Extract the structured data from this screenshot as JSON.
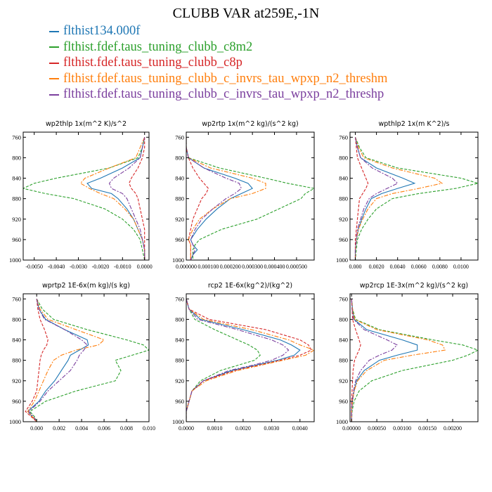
{
  "title": "CLUBB VAR at259E,-1N",
  "legend": [
    {
      "label": "flthist134.000f",
      "color": "#1f77b4"
    },
    {
      "label": "flthist.fdef.taus_tuning_clubb_c8m2",
      "color": "#2ca02c"
    },
    {
      "label": "flthist.fdef.taus_tuning_clubb_c8p",
      "color": "#d62728"
    },
    {
      "label": "flthist.fdef.taus_tuning_clubb_c_invrs_tau_wpxp_n2_threshm",
      "color": "#ff7f0e"
    },
    {
      "label": "flthist.fdef.taus_tuning_clubb_c_invrs_tau_wpxp_n2_threshp",
      "color": "#7b3f9e"
    }
  ],
  "chart_data": [
    {
      "type": "line",
      "title": "wp2thlp   1x(m^2 K)/s^2",
      "xlim": [
        -0.0055,
        0.0002
      ],
      "ylim": [
        1000,
        750
      ],
      "yticks": [
        760,
        800,
        840,
        880,
        920,
        960,
        1000
      ],
      "xticks": [
        -0.005,
        -0.004,
        -0.003,
        -0.002,
        -0.001,
        0.0
      ],
      "xtick_labels": [
        "-0.0050",
        "-0.0040",
        "-0.0030",
        "-0.0020",
        "-0.0010",
        "0.0000"
      ],
      "y": [
        760,
        780,
        800,
        820,
        840,
        850,
        860,
        870,
        880,
        900,
        920,
        940,
        960,
        980,
        1000
      ],
      "series": [
        {
          "values": [
            0.0,
            -0.0001,
            -0.0002,
            -0.001,
            -0.002,
            -0.0026,
            -0.0024,
            -0.0015,
            -0.0012,
            -0.0008,
            -0.0005,
            -0.0003,
            -0.0001,
            0.0,
            0.0
          ]
        },
        {
          "values": [
            0.0,
            -0.0001,
            -0.0003,
            -0.0016,
            -0.004,
            -0.005,
            -0.0055,
            -0.0045,
            -0.0032,
            -0.0018,
            -0.001,
            -0.0005,
            -0.0002,
            -0.0001,
            0.0
          ]
        },
        {
          "values": [
            0.0,
            0.0,
            -0.0001,
            -0.0003,
            -0.0006,
            -0.0007,
            -0.0006,
            -0.0004,
            -0.0003,
            -0.0002,
            -0.0001,
            0.0,
            0.0,
            0.0,
            0.0
          ]
        },
        {
          "values": [
            0.0,
            -0.0002,
            -0.0004,
            -0.0016,
            -0.0027,
            -0.0029,
            -0.0025,
            -0.002,
            -0.0014,
            -0.0009,
            -0.0005,
            -0.0003,
            -0.0001,
            0.0,
            0.0
          ]
        },
        {
          "values": [
            0.0,
            -0.0001,
            -0.0002,
            -0.0007,
            -0.0014,
            -0.0016,
            -0.0015,
            -0.001,
            -0.0008,
            -0.0006,
            -0.0004,
            -0.0002,
            -0.0001,
            0.0,
            0.0
          ]
        }
      ]
    },
    {
      "type": "line",
      "title": "wp2rtp   1x(m^2 kg)/(s^2 kg)",
      "xlim": [
        0.0,
        0.00058
      ],
      "ylim": [
        1000,
        750
      ],
      "yticks": [
        760,
        800,
        840,
        880,
        920,
        960,
        1000
      ],
      "xticks": [
        0.0,
        0.0001,
        0.0002,
        0.0003,
        0.0004,
        0.0005
      ],
      "xtick_labels": [
        "0.000000",
        "0.000100",
        "0.000200",
        "0.000300",
        "0.000400",
        "0.000500"
      ],
      "y": [
        760,
        780,
        800,
        820,
        840,
        850,
        860,
        870,
        880,
        900,
        920,
        940,
        960,
        970,
        980,
        990,
        1000
      ],
      "series": [
        {
          "values": [
            0.0,
            0.0,
            1e-05,
            8e-05,
            0.00022,
            0.00028,
            0.0003,
            0.00025,
            0.0002,
            0.00014,
            9e-05,
            5e-05,
            2e-05,
            3e-05,
            5e-05,
            3e-05,
            2e-05
          ]
        },
        {
          "values": [
            0.0,
            0.0,
            1e-05,
            0.00015,
            0.00036,
            0.00046,
            0.00058,
            0.00054,
            0.00052,
            0.00042,
            0.00032,
            0.00016,
            6e-05,
            4e-05,
            3e-05,
            3e-05,
            3e-05
          ]
        },
        {
          "values": [
            0.0,
            0.0,
            1e-05,
            3e-05,
            6e-05,
            8e-05,
            0.0001,
            9e-05,
            7e-05,
            5e-05,
            3e-05,
            2e-05,
            1e-05,
            2e-05,
            2e-05,
            2e-05,
            2e-05
          ]
        },
        {
          "values": [
            0.0,
            0.0,
            1e-05,
            0.00011,
            0.0003,
            0.00036,
            0.00036,
            0.0003,
            0.0002,
            0.00012,
            6e-05,
            3e-05,
            1e-05,
            2e-05,
            2e-05,
            2e-05,
            2e-05
          ]
        },
        {
          "values": [
            0.0,
            0.0,
            1e-05,
            8e-05,
            0.00018,
            0.00024,
            0.00025,
            0.00022,
            0.00018,
            0.00012,
            7e-05,
            4e-05,
            2e-05,
            3e-05,
            4e-05,
            3e-05,
            2e-05
          ]
        }
      ]
    },
    {
      "type": "line",
      "title": "wpthlp2   1x(m K^2)/s",
      "xlim": [
        -0.0005,
        0.0116
      ],
      "ylim": [
        1000,
        750
      ],
      "yticks": [
        760,
        800,
        840,
        880,
        920,
        960,
        1000
      ],
      "xticks": [
        0.0,
        0.002,
        0.004,
        0.006,
        0.008,
        0.01
      ],
      "xtick_labels": [
        "0.000",
        "0.0020",
        "0.0040",
        "0.0060",
        "0.0080",
        "0.0100"
      ],
      "y": [
        760,
        780,
        800,
        820,
        840,
        850,
        860,
        870,
        880,
        900,
        920,
        940,
        960,
        980,
        1000
      ],
      "series": [
        {
          "values": [
            0.0,
            0.0002,
            0.0005,
            0.002,
            0.0045,
            0.0056,
            0.004,
            0.0025,
            0.0015,
            0.001,
            0.0006,
            0.0003,
            0.0001,
            0.0,
            0.0
          ]
        },
        {
          "values": [
            0.0,
            0.0004,
            0.001,
            0.004,
            0.01,
            0.0116,
            0.0095,
            0.006,
            0.0035,
            0.002,
            0.0012,
            0.0006,
            0.0002,
            0.0001,
            0.0
          ]
        },
        {
          "values": [
            0.0,
            0.0001,
            0.0002,
            0.0006,
            0.001,
            0.0012,
            0.001,
            0.0007,
            0.0004,
            0.0003,
            0.0002,
            0.0001,
            0.0,
            0.0,
            0.0
          ]
        },
        {
          "values": [
            0.0,
            0.0003,
            0.0008,
            0.0035,
            0.0075,
            0.0082,
            0.006,
            0.0035,
            0.002,
            0.0012,
            0.0007,
            0.0003,
            0.0001,
            0.0,
            0.0
          ]
        },
        {
          "values": [
            0.0,
            0.0002,
            0.0005,
            0.0016,
            0.0035,
            0.004,
            0.003,
            0.002,
            0.0013,
            0.0008,
            0.0005,
            0.0002,
            0.0001,
            0.0,
            0.0
          ]
        }
      ]
    },
    {
      "type": "line",
      "title": "wprtp2   1E-6x(m kg)/(s kg)",
      "xlim": [
        -0.0012,
        0.01
      ],
      "ylim": [
        1000,
        750
      ],
      "yticks": [
        760,
        800,
        840,
        880,
        920,
        960,
        1000
      ],
      "xticks": [
        0.0,
        0.002,
        0.004,
        0.006,
        0.008,
        0.01
      ],
      "xtick_labels": [
        "0.000",
        "0.002",
        "0.004",
        "0.006",
        "0.008",
        "0.010"
      ],
      "y": [
        760,
        780,
        800,
        820,
        840,
        850,
        860,
        870,
        880,
        900,
        920,
        940,
        960,
        980,
        990,
        1000
      ],
      "series": [
        {
          "values": [
            0.0,
            0.0002,
            0.0008,
            0.0025,
            0.0045,
            0.0046,
            0.0038,
            0.003,
            0.0028,
            0.0022,
            0.0016,
            0.0008,
            0.0002,
            -0.0008,
            -0.0004,
            0.0
          ]
        },
        {
          "values": [
            0.0,
            0.0005,
            0.0015,
            0.0045,
            0.008,
            0.0095,
            0.01,
            0.0085,
            0.007,
            0.0075,
            0.007,
            0.0035,
            0.0008,
            -0.0006,
            -0.0002,
            0.0
          ]
        },
        {
          "values": [
            0.0,
            0.0001,
            0.0003,
            0.0007,
            0.001,
            0.0009,
            0.0006,
            0.0004,
            0.0003,
            0.0002,
            0.0001,
            0.0,
            -0.0004,
            -0.001,
            -0.0005,
            0.0
          ]
        },
        {
          "values": [
            0.0,
            0.0003,
            0.001,
            0.0035,
            0.006,
            0.0055,
            0.0035,
            0.0022,
            0.0015,
            0.001,
            0.0006,
            0.0002,
            -0.0002,
            -0.0008,
            -0.0004,
            0.0
          ]
        },
        {
          "values": [
            0.0,
            0.0002,
            0.0007,
            0.0025,
            0.004,
            0.0045,
            0.0042,
            0.0038,
            0.0036,
            0.003,
            0.002,
            0.001,
            0.0003,
            -0.0007,
            -0.0003,
            0.0
          ]
        }
      ]
    },
    {
      "type": "line",
      "title": "rcp2   1E-6x(kg^2)/(kg^2)",
      "xlim": [
        0.0,
        0.0045
      ],
      "ylim": [
        1000,
        750
      ],
      "yticks": [
        760,
        800,
        840,
        880,
        920,
        960,
        1000
      ],
      "xticks": [
        0.0,
        0.001,
        0.002,
        0.003,
        0.004
      ],
      "xtick_labels": [
        "0.0000",
        "0.0010",
        "0.0020",
        "0.0030",
        "0.0040"
      ],
      "y": [
        760,
        780,
        800,
        820,
        840,
        850,
        860,
        870,
        880,
        890,
        900,
        920,
        940,
        960,
        980,
        1000
      ],
      "series": [
        {
          "values": [
            0.0,
            0.0001,
            0.0005,
            0.002,
            0.0033,
            0.0037,
            0.004,
            0.0038,
            0.0032,
            0.0024,
            0.0016,
            0.0006,
            0.0002,
            0.0001,
            0.0,
            0.0
          ]
        },
        {
          "values": [
            0.0,
            0.0001,
            0.0003,
            0.001,
            0.0018,
            0.0022,
            0.0025,
            0.0026,
            0.0024,
            0.0018,
            0.0012,
            0.0005,
            0.0002,
            0.0001,
            0.0,
            0.0
          ]
        },
        {
          "values": [
            0.0,
            0.0001,
            0.0008,
            0.0028,
            0.004,
            0.0043,
            0.0044,
            0.004,
            0.0033,
            0.0025,
            0.0017,
            0.0006,
            0.0002,
            0.0001,
            0.0,
            0.0
          ]
        },
        {
          "values": [
            0.0,
            0.0001,
            0.0006,
            0.0023,
            0.0036,
            0.004,
            0.0045,
            0.0042,
            0.0034,
            0.0026,
            0.0018,
            0.0007,
            0.0002,
            0.0001,
            0.0,
            0.0
          ]
        },
        {
          "values": [
            0.0,
            0.0001,
            0.0004,
            0.0018,
            0.003,
            0.0034,
            0.0036,
            0.0034,
            0.003,
            0.0023,
            0.0015,
            0.0006,
            0.0002,
            0.0001,
            0.0,
            0.0
          ]
        }
      ]
    },
    {
      "type": "line",
      "title": "wp2rcp   1E-3x(m^2 kg)/(s^2 kg)",
      "xlim": [
        -3e-05,
        0.0025
      ],
      "ylim": [
        1000,
        750
      ],
      "yticks": [
        760,
        800,
        840,
        880,
        920,
        960,
        1000
      ],
      "xticks": [
        0.0,
        0.0005,
        0.001,
        0.0015,
        0.002
      ],
      "xtick_labels": [
        "0.00000",
        "0.00050",
        "0.00100",
        "0.00150",
        "0.00200"
      ],
      "y": [
        760,
        780,
        800,
        820,
        840,
        850,
        860,
        870,
        880,
        900,
        920,
        940,
        960,
        980,
        1000
      ],
      "series": [
        {
          "values": [
            0.0,
            2e-05,
            5e-05,
            0.0003,
            0.001,
            0.0013,
            0.0013,
            0.0009,
            0.00055,
            0.00025,
            0.0001,
            5e-05,
            2e-05,
            0.0,
            0.0
          ]
        },
        {
          "values": [
            0.0,
            2e-05,
            8e-05,
            0.00055,
            0.0016,
            0.0022,
            0.0025,
            0.0023,
            0.002,
            0.001,
            0.0004,
            0.00015,
            5e-05,
            1e-05,
            0.0
          ]
        },
        {
          "values": [
            0.0,
            1e-05,
            2e-05,
            8e-05,
            0.00015,
            0.00018,
            0.00015,
            0.0001,
            6e-05,
            3e-05,
            2e-05,
            1e-05,
            0.0,
            0.0,
            0.0
          ]
        },
        {
          "values": [
            0.0,
            2e-05,
            6e-05,
            0.0005,
            0.0015,
            0.0018,
            0.00185,
            0.0012,
            0.00065,
            0.0003,
            0.00012,
            5e-05,
            2e-05,
            0.0,
            0.0
          ]
        },
        {
          "values": [
            0.0,
            1e-05,
            4e-05,
            0.00025,
            0.0007,
            0.0009,
            0.0008,
            0.00055,
            0.00035,
            0.00018,
            8e-05,
            4e-05,
            1e-05,
            0.0,
            0.0
          ]
        }
      ]
    }
  ]
}
